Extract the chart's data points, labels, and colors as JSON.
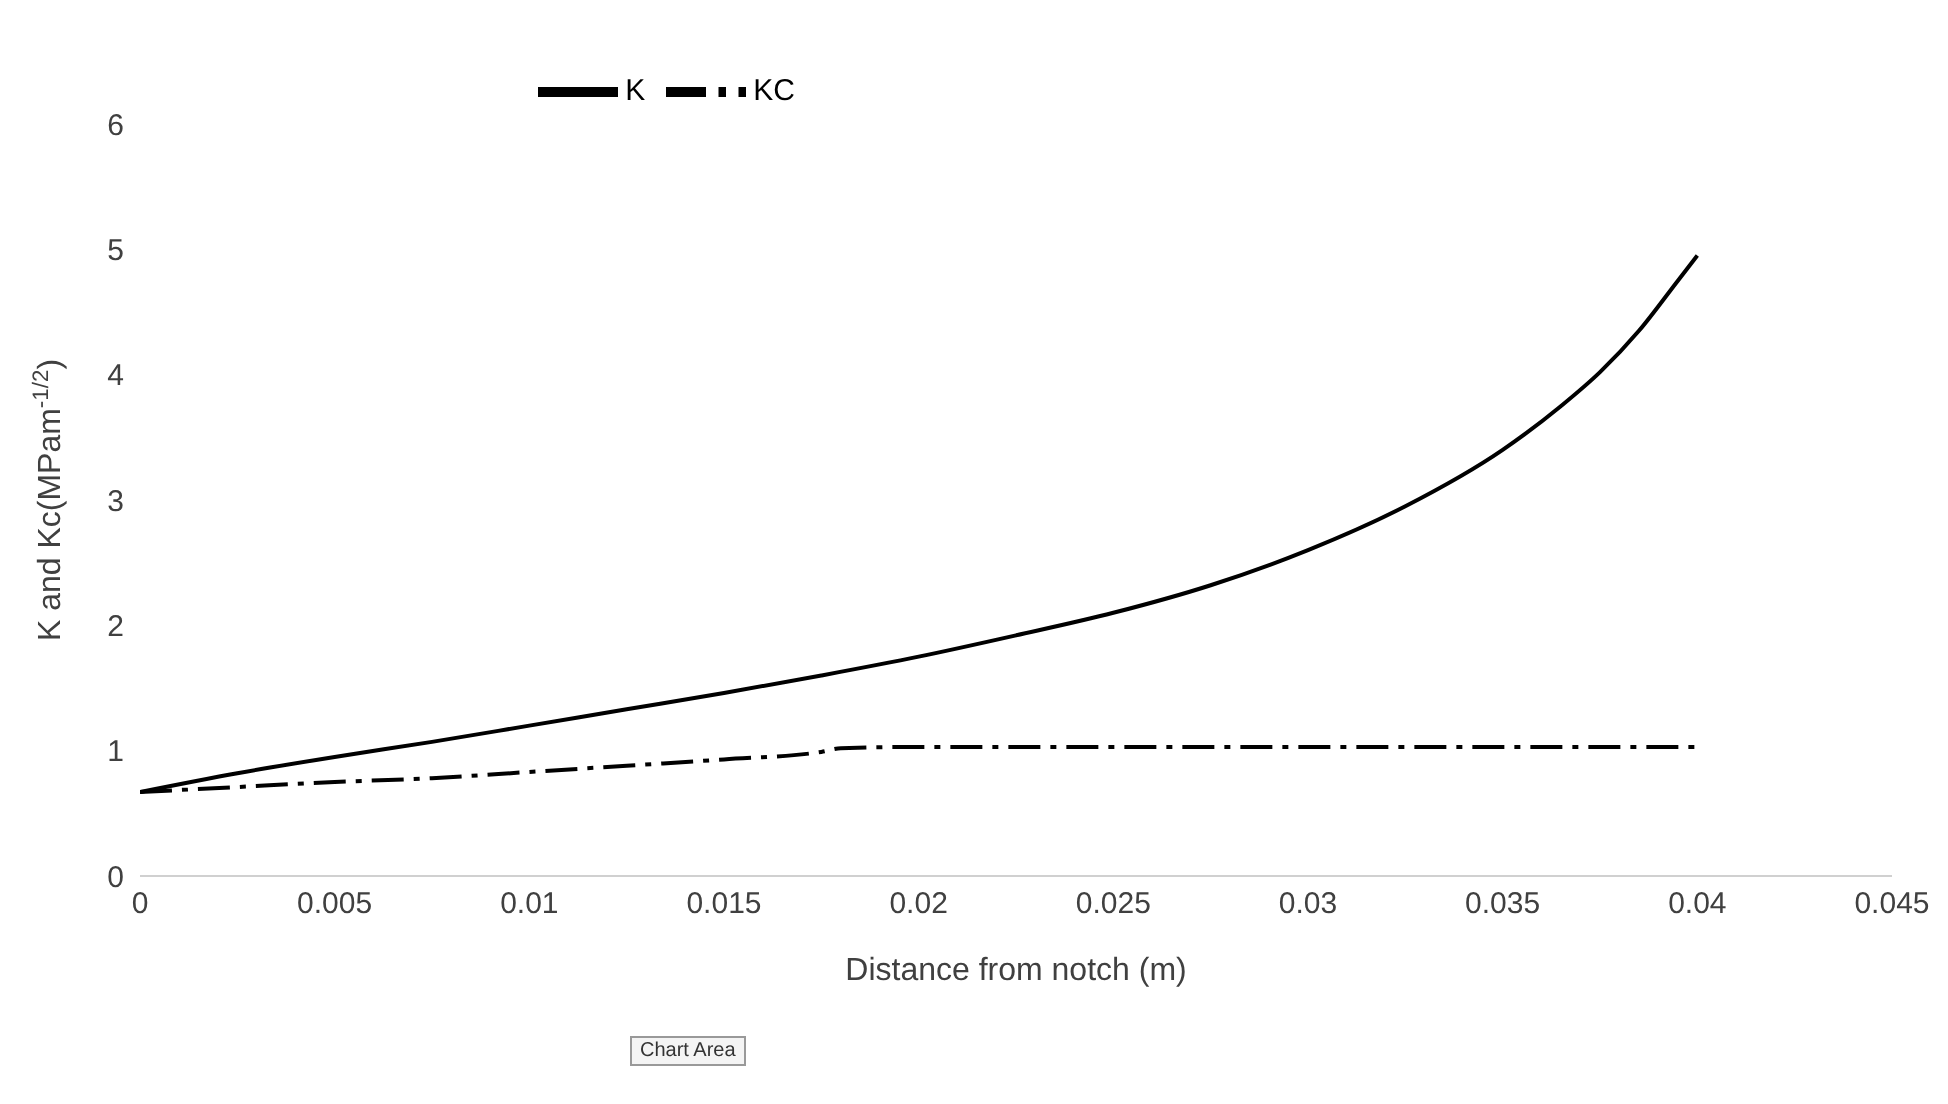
{
  "chart_data": {
    "type": "line",
    "xlabel": "Distance from notch (m)",
    "ylabel": "K and Kc(MPam$^{-1/2}$)",
    "xlim": [
      0,
      0.045
    ],
    "xticks": [
      0,
      0.005,
      0.01,
      0.015,
      0.02,
      0.025,
      0.03,
      0.035,
      0.04,
      0.045
    ],
    "ylim": [
      0,
      6
    ],
    "yticks": [
      0,
      1,
      2,
      3,
      4,
      5,
      6
    ],
    "grid": false,
    "legend": "top",
    "marker": "none",
    "annotations": [
      "Chart Area"
    ],
    "series": [
      {
        "name": "K",
        "color": "#000000",
        "line_style": "solid",
        "x": [
          0,
          0.0025,
          0.005,
          0.0075,
          0.01,
          0.0125,
          0.015,
          0.0175,
          0.02,
          0.0225,
          0.025,
          0.0275,
          0.03,
          0.0325,
          0.035,
          0.0365,
          0.0375,
          0.0385,
          0.0395,
          0.04
        ],
        "values": [
          0.67,
          0.82,
          0.95,
          1.07,
          1.2,
          1.33,
          1.46,
          1.6,
          1.75,
          1.92,
          2.1,
          2.32,
          2.6,
          2.95,
          3.4,
          3.75,
          4.02,
          4.35,
          4.75,
          4.95
        ]
      },
      {
        "name": "KC",
        "color": "#000000",
        "line_style": "dashed",
        "x": [
          0,
          0.0025,
          0.005,
          0.0075,
          0.01,
          0.0125,
          0.015,
          0.0175,
          0.018,
          0.02,
          0.025,
          0.03,
          0.035,
          0.04
        ],
        "values": [
          0.67,
          0.71,
          0.75,
          0.78,
          0.83,
          0.88,
          0.93,
          0.99,
          1.02,
          1.03,
          1.03,
          1.03,
          1.03,
          1.03
        ]
      }
    ]
  }
}
